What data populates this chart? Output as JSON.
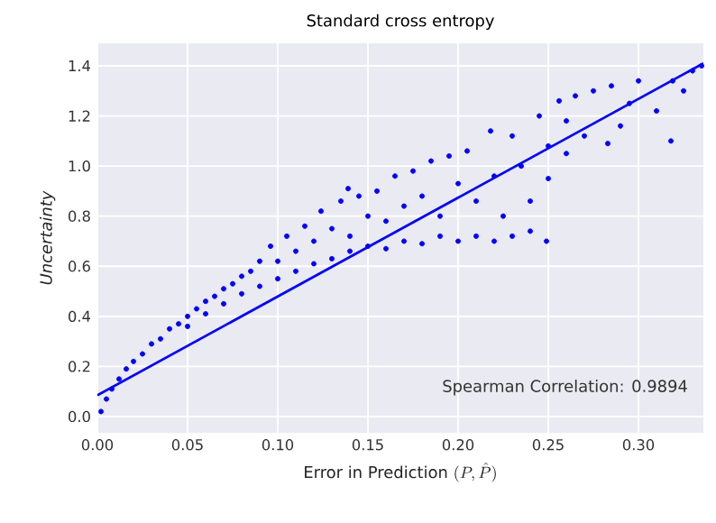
{
  "chart_data": {
    "type": "scatter",
    "title": "Standard cross entropy",
    "xlabel": "\\mbox{Error in Prediction }(P,\\hat{P})",
    "ylabel": "Uncertainty",
    "xlim": [
      0,
      0.336
    ],
    "ylim": [
      -0.065,
      1.49
    ],
    "xticks": [
      {
        "value": 0,
        "label": "0.00"
      },
      {
        "value": 0.05,
        "label": "0.05"
      },
      {
        "value": 0.1,
        "label": "0.10"
      },
      {
        "value": 0.15,
        "label": "0.15"
      },
      {
        "value": 0.2,
        "label": "0.20"
      },
      {
        "value": 0.25,
        "label": "0.25"
      },
      {
        "value": 0.3,
        "label": "0.30"
      }
    ],
    "yticks": [
      {
        "value": 0,
        "label": "0.0"
      },
      {
        "value": 0.2,
        "label": "0.2"
      },
      {
        "value": 0.4,
        "label": "0.4"
      },
      {
        "value": 0.6,
        "label": "0.6"
      },
      {
        "value": 0.8,
        "label": "0.8"
      },
      {
        "value": 1.0,
        "label": "1.0"
      },
      {
        "value": 1.2,
        "label": "1.2"
      },
      {
        "value": 1.4,
        "label": "1.4"
      }
    ],
    "grid": true,
    "annotations": [
      "Spearman Correlation: 0.9894"
    ],
    "series": [
      {
        "marker": "circle",
        "color": "#0000ff",
        "x": [
          0.002,
          0.005,
          0.008,
          0.012,
          0.016,
          0.02,
          0.025,
          0.03,
          0.035,
          0.04,
          0.045,
          0.05,
          0.05,
          0.055,
          0.06,
          0.06,
          0.065,
          0.07,
          0.07,
          0.075,
          0.08,
          0.08,
          0.085,
          0.09,
          0.09,
          0.096,
          0.1,
          0.1,
          0.105,
          0.11,
          0.11,
          0.115,
          0.12,
          0.12,
          0.124,
          0.13,
          0.13,
          0.135,
          0.139,
          0.14,
          0.14,
          0.145,
          0.15,
          0.15,
          0.155,
          0.16,
          0.16,
          0.165,
          0.17,
          0.17,
          0.175,
          0.18,
          0.18,
          0.185,
          0.19,
          0.19,
          0.195,
          0.2,
          0.2,
          0.205,
          0.21,
          0.21,
          0.218,
          0.22,
          0.22,
          0.225,
          0.23,
          0.23,
          0.235,
          0.24,
          0.24,
          0.245,
          0.249,
          0.25,
          0.25,
          0.256,
          0.26,
          0.26,
          0.265,
          0.27,
          0.275,
          0.283,
          0.285,
          0.29,
          0.295,
          0.3,
          0.31,
          0.318,
          0.319,
          0.325,
          0.33,
          0.335
        ],
        "values": [
          0.02,
          0.07,
          0.11,
          0.15,
          0.19,
          0.22,
          0.25,
          0.29,
          0.31,
          0.35,
          0.37,
          0.4,
          0.36,
          0.43,
          0.46,
          0.41,
          0.48,
          0.51,
          0.45,
          0.53,
          0.56,
          0.49,
          0.58,
          0.62,
          0.52,
          0.68,
          0.62,
          0.55,
          0.72,
          0.66,
          0.58,
          0.76,
          0.7,
          0.61,
          0.82,
          0.75,
          0.63,
          0.86,
          0.91,
          0.72,
          0.66,
          0.88,
          0.8,
          0.68,
          0.9,
          0.78,
          0.67,
          0.96,
          0.84,
          0.7,
          0.98,
          0.88,
          0.69,
          1.02,
          0.8,
          0.72,
          1.04,
          0.93,
          0.7,
          1.06,
          0.86,
          0.72,
          1.14,
          0.96,
          0.7,
          0.8,
          1.12,
          0.72,
          1.0,
          0.86,
          0.74,
          1.2,
          0.7,
          1.08,
          0.95,
          1.26,
          1.05,
          1.18,
          1.28,
          1.12,
          1.3,
          1.09,
          1.32,
          1.16,
          1.25,
          1.34,
          1.22,
          1.1,
          1.34,
          1.3,
          1.38,
          1.4
        ]
      },
      {
        "type": "line",
        "marker": "none",
        "color": "#0000ff",
        "x": [
          0,
          0.336
        ],
        "values": [
          0.085,
          1.41
        ]
      }
    ]
  }
}
